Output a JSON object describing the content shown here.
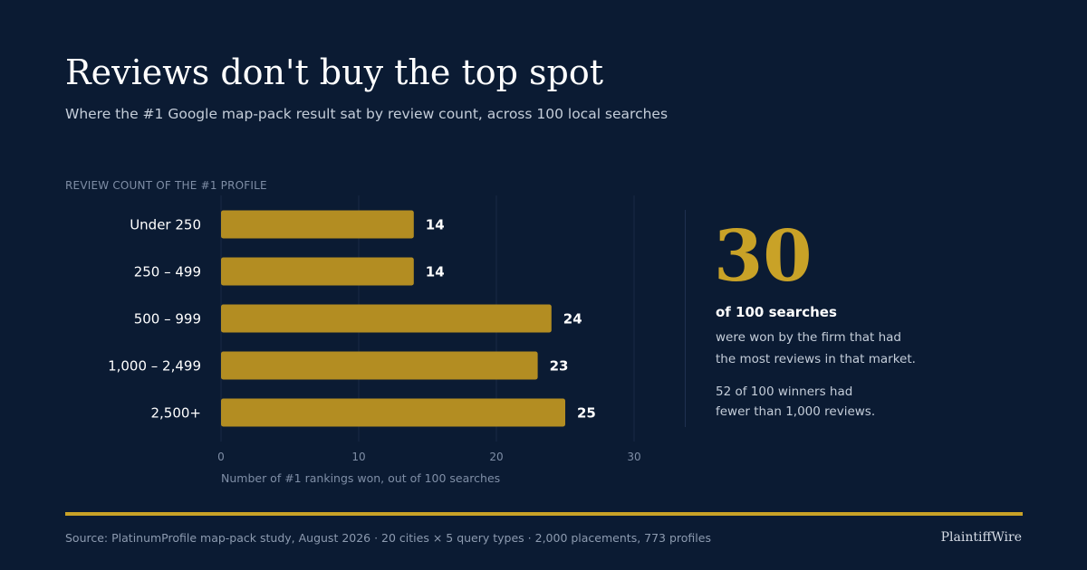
{
  "header": {
    "title": "Reviews don't buy the top spot",
    "subtitle": "Where the #1 Google map-pack result sat by review count, across 100 local searches"
  },
  "colors": {
    "background": "#0b1b33",
    "accent_gold": "#b38d22",
    "callout_gold": "#c9a227",
    "gridline": "#1a2a45",
    "text_primary": "#ffffff",
    "text_muted": "#7f8ea6"
  },
  "chart_data": {
    "type": "bar",
    "orientation": "horizontal",
    "ylabel": "REVIEW COUNT OF THE #1 PROFILE",
    "xlabel": "Number of #1 rankings won, out of 100 searches",
    "categories": [
      "Under 250",
      "250 – 499",
      "500 – 999",
      "1,000 – 2,499",
      "2,500+"
    ],
    "values": [
      14,
      14,
      24,
      23,
      25
    ],
    "data_labels": [
      "14",
      "14",
      "24",
      "23",
      "25"
    ],
    "xlim": [
      0,
      33
    ],
    "xticks": [
      0,
      10,
      20,
      30
    ],
    "grid": true,
    "legend": "none"
  },
  "callout": {
    "number": "30",
    "headline": "of 100 searches",
    "text": "were won by the firm that had\nthe most reviews in that market.",
    "text2": "52 of 100 winners had\nfewer than 1,000 reviews."
  },
  "footer": {
    "source": "Source: PlatinumProfile map-pack study, August 2026  ·  20 cities × 5 query types  ·  2,000 placements, 773 profiles",
    "brand": "PlaintiffWire"
  }
}
